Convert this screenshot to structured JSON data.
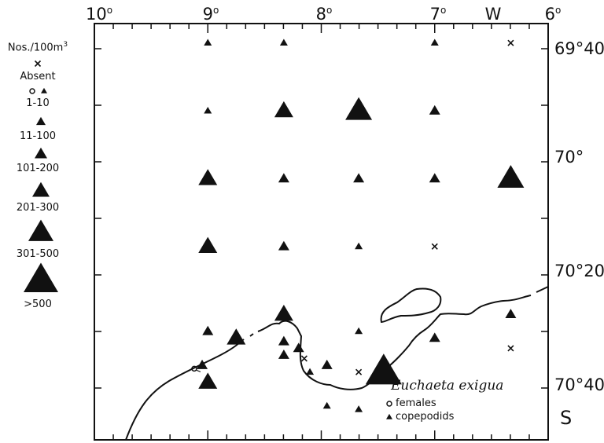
{
  "longitude_labels": [
    "10",
    "9",
    "8",
    "7",
    "W",
    "6"
  ],
  "latitude_labels": [
    "69°40'",
    "70°",
    "70°20'",
    "70°40'",
    "S"
  ],
  "legend": {
    "title": "Nos./100m",
    "title_superscript": "3",
    "classes": [
      {
        "label": "Absent",
        "symbol": "cross"
      },
      {
        "label": "1-10",
        "symbol": "circle-triangle"
      },
      {
        "label": "11-100",
        "symbol": "triangle-s1"
      },
      {
        "label": "101-200",
        "symbol": "triangle-s2"
      },
      {
        "label": "201-300",
        "symbol": "triangle-s3"
      },
      {
        "label": "301-500",
        "symbol": "triangle-s4"
      },
      {
        "label": ">500",
        "symbol": "triangle-s5"
      }
    ]
  },
  "species": "Euchaeta exigua",
  "key": {
    "female_label": "females",
    "copepodid_label": "copepodids"
  },
  "stations": [
    {
      "lon": 9.0,
      "lat": 69.65,
      "symbol": "triangle",
      "class": "1-10"
    },
    {
      "lon": 8.33,
      "lat": 69.65,
      "symbol": "triangle",
      "class": "1-10"
    },
    {
      "lon": 7.0,
      "lat": 69.65,
      "symbol": "triangle",
      "class": "1-10"
    },
    {
      "lon": 6.33,
      "lat": 69.65,
      "symbol": "cross",
      "class": "Absent"
    },
    {
      "lon": 9.0,
      "lat": 69.85,
      "symbol": "triangle",
      "class": "1-10"
    },
    {
      "lon": 8.33,
      "lat": 69.85,
      "symbol": "triangle",
      "class": "201-300"
    },
    {
      "lon": 7.67,
      "lat": 69.85,
      "symbol": "triangle",
      "class": "301-500"
    },
    {
      "lon": 7.0,
      "lat": 69.85,
      "symbol": "triangle",
      "class": "11-100"
    },
    {
      "lon": 9.0,
      "lat": 70.05,
      "symbol": "triangle",
      "class": "201-300"
    },
    {
      "lon": 8.33,
      "lat": 70.05,
      "symbol": "triangle",
      "class": "11-100"
    },
    {
      "lon": 7.67,
      "lat": 70.05,
      "symbol": "triangle",
      "class": "11-100"
    },
    {
      "lon": 7.0,
      "lat": 70.05,
      "symbol": "triangle",
      "class": "11-100"
    },
    {
      "lon": 6.33,
      "lat": 70.05,
      "symbol": "triangle",
      "class": "301-500"
    },
    {
      "lon": 9.0,
      "lat": 70.25,
      "symbol": "triangle",
      "class": "201-300"
    },
    {
      "lon": 8.33,
      "lat": 70.25,
      "symbol": "triangle",
      "class": "11-100"
    },
    {
      "lon": 7.67,
      "lat": 70.25,
      "symbol": "triangle",
      "class": "1-10"
    },
    {
      "lon": 7.0,
      "lat": 70.25,
      "symbol": "cross",
      "class": "Absent"
    },
    {
      "lon": 8.33,
      "lat": 70.45,
      "symbol": "triangle",
      "class": "201-300"
    },
    {
      "lon": 6.33,
      "lat": 70.45,
      "symbol": "triangle",
      "class": "11-100"
    },
    {
      "lon": 9.0,
      "lat": 70.5,
      "symbol": "triangle",
      "class": "11-100"
    },
    {
      "lon": 8.75,
      "lat": 70.52,
      "symbol": "triangle",
      "class": "201-300"
    },
    {
      "lon": 8.33,
      "lat": 70.53,
      "symbol": "triangle",
      "class": "11-100"
    },
    {
      "lon": 8.33,
      "lat": 70.57,
      "symbol": "triangle",
      "class": "11-100"
    },
    {
      "lon": 8.2,
      "lat": 70.55,
      "symbol": "triangle",
      "class": "11-100"
    },
    {
      "lon": 7.67,
      "lat": 70.5,
      "symbol": "triangle",
      "class": "1-10"
    },
    {
      "lon": 7.0,
      "lat": 70.52,
      "symbol": "triangle",
      "class": "11-100"
    },
    {
      "lon": 6.33,
      "lat": 70.55,
      "symbol": "cross",
      "class": "Absent"
    },
    {
      "lon": 8.15,
      "lat": 70.58,
      "symbol": "cross",
      "class": "Absent"
    },
    {
      "lon": 9.05,
      "lat": 70.6,
      "symbol": "triangle",
      "class": "11-100"
    },
    {
      "lon": 9.0,
      "lat": 70.65,
      "symbol": "triangle",
      "class": "201-300"
    },
    {
      "lon": 8.1,
      "lat": 70.62,
      "symbol": "triangle",
      "class": "1-10"
    },
    {
      "lon": 7.95,
      "lat": 70.6,
      "symbol": "triangle",
      "class": "11-100"
    },
    {
      "lon": 7.67,
      "lat": 70.62,
      "symbol": "cross",
      "class": "Absent"
    },
    {
      "lon": 7.45,
      "lat": 70.62,
      "symbol": "triangle",
      "class": ">500"
    },
    {
      "lon": 7.95,
      "lat": 70.72,
      "symbol": "triangle",
      "class": "1-10"
    },
    {
      "lon": 7.67,
      "lat": 70.73,
      "symbol": "triangle",
      "class": "1-10"
    }
  ],
  "female_station": {
    "lon": 9.12,
    "lat": 70.61,
    "symbol": "circle"
  }
}
